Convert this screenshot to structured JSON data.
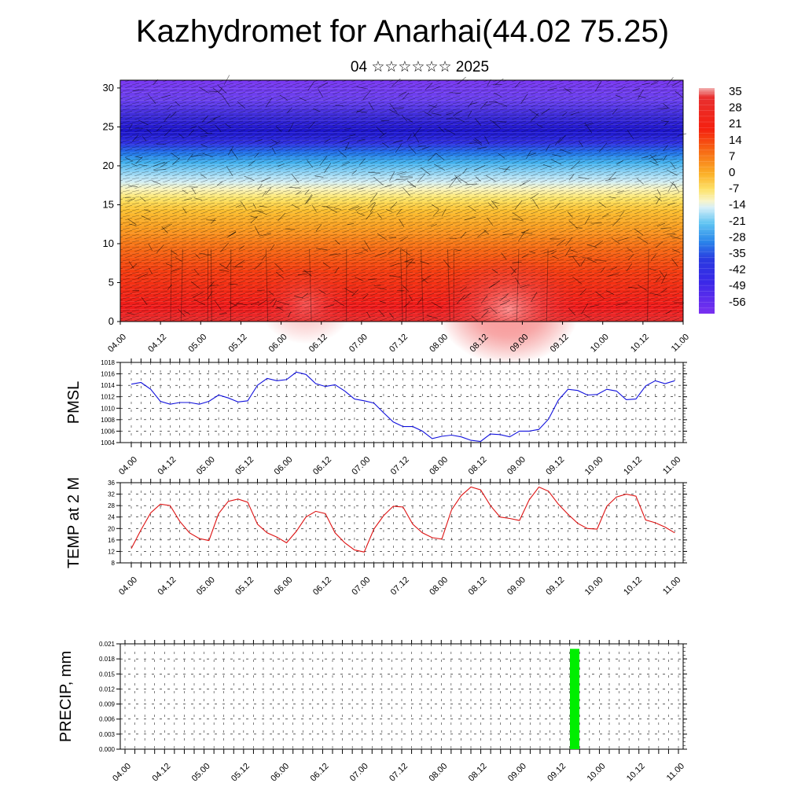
{
  "header": {
    "title": "Kazhydromet for Anarhai(44.02 75.25)",
    "subtitle": "04 ☆☆☆☆☆☆ 2025"
  },
  "colors": {
    "pmsl_line": "#1111dd",
    "temp_line": "#dd1111",
    "precip_bar": "#00ee00",
    "palette_hot": "#e82020",
    "palette_cold": "#7a30f0"
  },
  "time_labels": [
    "04.00",
    "04.12",
    "05.00",
    "05.12",
    "06.00",
    "06.12",
    "07.00",
    "07.12",
    "08.00",
    "08.12",
    "09.00",
    "09.12",
    "10.00",
    "10.12",
    "11.00"
  ],
  "chart_data": [
    {
      "type": "heatmap",
      "title": "",
      "xlabel": "",
      "ylabel": "",
      "ylim": [
        0,
        31
      ],
      "y_ticks": [
        0,
        5,
        10,
        15,
        20,
        25,
        30
      ],
      "colorbar": {
        "labels": [
          "35",
          "28",
          "21",
          "14",
          "7",
          "0",
          "-7",
          "-14",
          "-21",
          "-28",
          "-35",
          "-42",
          "-49",
          "-56"
        ],
        "range": [
          -60,
          38
        ]
      },
      "overlay": "wind barbs"
    },
    {
      "type": "line",
      "ylabel": "PMSL",
      "ylim": [
        1004,
        1018
      ],
      "y_ticks": [
        "1004",
        "1006",
        "1008",
        "1010",
        "1012",
        "1014",
        "1016",
        "1018"
      ],
      "series": [
        {
          "values": [
            1014.2,
            1014.5,
            1013.3,
            1011.2,
            1010.7,
            1011.0,
            1011.0,
            1010.7,
            1011.2,
            1012.3,
            1011.8,
            1011.1,
            1011.3,
            1014.0,
            1015.2,
            1014.8,
            1015.0,
            1016.3,
            1015.9,
            1014.3,
            1013.8,
            1014.1,
            1013.0,
            1011.6,
            1011.3,
            1010.9,
            1009.2,
            1007.6,
            1006.8,
            1006.8,
            1006.0,
            1004.7,
            1005.1,
            1005.3,
            1005.0,
            1004.4,
            1004.2,
            1005.5,
            1005.4,
            1005.0,
            1006.0,
            1006.0,
            1006.3,
            1008.1,
            1011.4,
            1013.3,
            1013.1,
            1012.3,
            1012.4,
            1013.3,
            1013.0,
            1011.5,
            1011.6,
            1013.9,
            1014.8,
            1014.3,
            1014.8
          ]
        }
      ]
    },
    {
      "type": "line",
      "ylabel": "TEMP at 2 M",
      "ylim": [
        8,
        36
      ],
      "y_ticks": [
        "8",
        "12",
        "16",
        "20",
        "24",
        "28",
        "32",
        "36"
      ],
      "series": [
        {
          "values": [
            13,
            19.5,
            25.5,
            28.5,
            28,
            22.5,
            18.5,
            16.5,
            15.8,
            25.2,
            29.5,
            30.3,
            29.2,
            21.5,
            18.5,
            17,
            15,
            19,
            24,
            26,
            25.2,
            18.5,
            15,
            12.5,
            11.8,
            19.8,
            24.5,
            27.8,
            27.5,
            21.5,
            18.5,
            16.8,
            16.3,
            26.5,
            31.5,
            34.5,
            33.5,
            28,
            24,
            23.5,
            22.8,
            30,
            34.5,
            33,
            28.5,
            25,
            21.8,
            20,
            19.8,
            27.8,
            31,
            32,
            31.3,
            23,
            22,
            20.5,
            18.5
          ]
        }
      ]
    },
    {
      "type": "bar",
      "ylabel": "PRECIP, mm",
      "ylim": [
        0,
        0.021
      ],
      "y_ticks": [
        "0.000",
        "0.003",
        "0.006",
        "0.009",
        "0.012",
        "0.015",
        "0.018",
        "0.021"
      ],
      "bars": [
        {
          "x": "09.15",
          "value": 0.02
        }
      ]
    }
  ]
}
